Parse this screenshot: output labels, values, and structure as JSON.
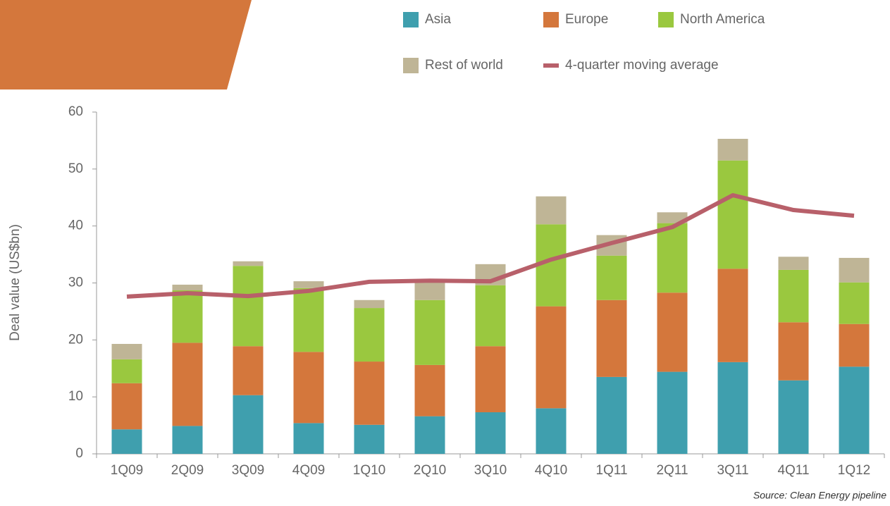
{
  "chart_data": {
    "type": "bar",
    "stacked": true,
    "y_label": "Deal value (US$bn)",
    "source": "Source: Clean Energy pipeline",
    "categories": [
      "1Q09",
      "2Q09",
      "3Q09",
      "4Q09",
      "1Q10",
      "2Q10",
      "3Q10",
      "4Q10",
      "1Q11",
      "2Q11",
      "3Q11",
      "4Q11",
      "1Q12"
    ],
    "series": [
      {
        "name": "Asia",
        "color": "#3f9fae",
        "values": [
          4.3,
          4.9,
          10.3,
          5.4,
          5.1,
          6.6,
          7.3,
          8.0,
          13.5,
          14.4,
          16.1,
          12.9,
          15.3
        ]
      },
      {
        "name": "Europe",
        "color": "#d4773c",
        "values": [
          8.1,
          14.6,
          8.6,
          12.5,
          11.1,
          9.0,
          11.6,
          17.9,
          13.5,
          13.9,
          16.4,
          10.2,
          7.5
        ]
      },
      {
        "name": "North America",
        "color": "#9ac83f",
        "values": [
          4.2,
          9.2,
          14.1,
          11.2,
          9.4,
          11.4,
          10.7,
          14.4,
          7.8,
          12.2,
          19.0,
          9.2,
          7.3
        ]
      },
      {
        "name": "Rest of world",
        "color": "#bfb596",
        "values": [
          2.7,
          1.0,
          0.8,
          1.2,
          1.4,
          3.2,
          3.7,
          4.9,
          3.6,
          1.9,
          3.8,
          2.3,
          4.3
        ]
      }
    ],
    "line": {
      "name": "4-quarter moving average",
      "color": "#b8606a",
      "values": [
        27.6,
        28.2,
        27.7,
        28.6,
        30.2,
        30.4,
        30.3,
        34.1,
        37.0,
        39.8,
        45.4,
        42.8,
        41.8
      ]
    },
    "ylim": [
      0,
      60
    ],
    "yticks": [
      0,
      10,
      20,
      30,
      40,
      50,
      60
    ]
  }
}
